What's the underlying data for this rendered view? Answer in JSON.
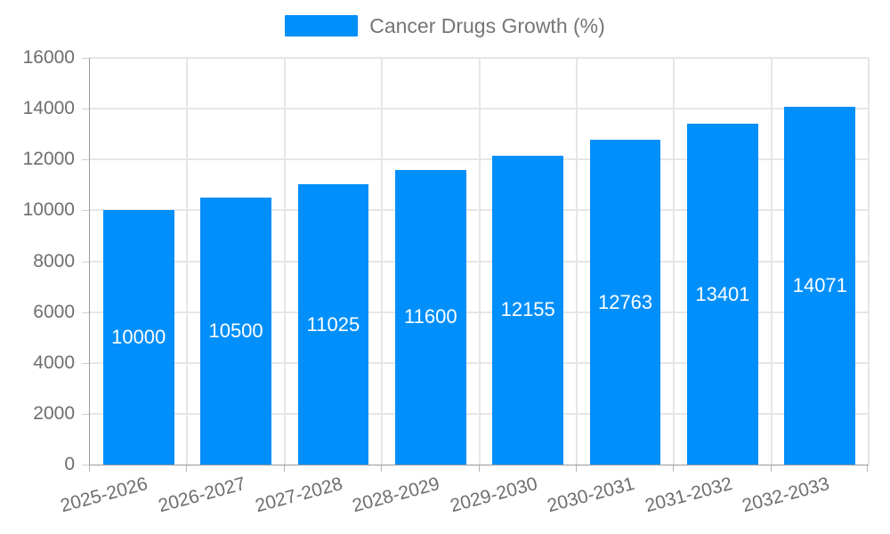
{
  "legend": {
    "label": "Cancer Drugs Growth (%)"
  },
  "chart_data": {
    "type": "bar",
    "title": "",
    "categories": [
      "2025-2026",
      "2026-2027",
      "2027-2028",
      "2028-2029",
      "2029-2030",
      "2030-2031",
      "2031-2032",
      "2032-2033"
    ],
    "series": [
      {
        "name": "Cancer Drugs Growth (%)",
        "values": [
          10000,
          10500,
          11025,
          11600,
          12155,
          12763,
          13401,
          14071
        ]
      }
    ],
    "yticks": [
      0,
      2000,
      4000,
      6000,
      8000,
      10000,
      12000,
      14000,
      16000
    ],
    "ylim": [
      0,
      16000
    ],
    "xlabel": "",
    "ylabel": "",
    "grid": true,
    "legend_position": "top",
    "bar_color": "#008FFB",
    "data_label_color": "#FFFFFF",
    "axis_label_color": "#6E6E6E",
    "axis_line_color": "#9A9A9A",
    "gridline_color": "#E6E6E6"
  }
}
